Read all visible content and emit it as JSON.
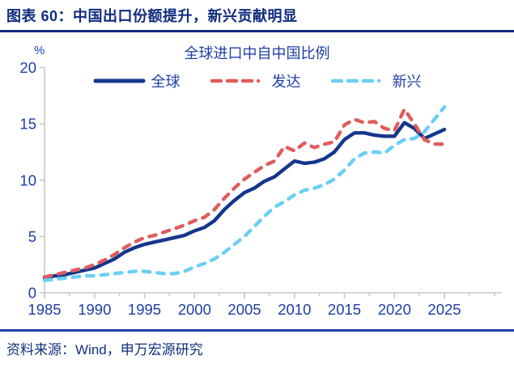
{
  "header": {
    "title": "图表 60：中国出口份额提升，新兴贡献明显"
  },
  "chart": {
    "title": "全球进口中自中国比例",
    "unit_label": "%",
    "legend": [
      {
        "id": "global",
        "label": "全球",
        "color": "#14368c",
        "dashed": false
      },
      {
        "id": "developed",
        "label": "发达",
        "color": "#e05c5c",
        "dashed": true
      },
      {
        "id": "emerging",
        "label": "新兴",
        "color": "#6bcef5",
        "dashed": true
      }
    ]
  },
  "chart_data": {
    "type": "line",
    "title": "全球进口中自中国比例",
    "xlabel": "",
    "ylabel": "%",
    "ylim": [
      0,
      20
    ],
    "yticks": [
      0,
      5,
      10,
      15,
      20
    ],
    "xticks": [
      1985,
      1990,
      1995,
      2000,
      2005,
      2010,
      2015,
      2020,
      2025
    ],
    "grid": false,
    "legend_position": "top",
    "x": [
      1985,
      1986,
      1987,
      1988,
      1989,
      1990,
      1991,
      1992,
      1993,
      1994,
      1995,
      1996,
      1997,
      1998,
      1999,
      2000,
      2001,
      2002,
      2003,
      2004,
      2005,
      2006,
      2007,
      2008,
      2009,
      2010,
      2011,
      2012,
      2013,
      2014,
      2015,
      2016,
      2017,
      2018,
      2019,
      2020,
      2021,
      2022,
      2023,
      2024,
      2025
    ],
    "series": [
      {
        "id": "global",
        "name": "全球",
        "color": "#14368c",
        "dashed": false,
        "values": [
          1.3,
          1.5,
          1.6,
          1.8,
          2.0,
          2.2,
          2.6,
          3.0,
          3.6,
          4.0,
          4.3,
          4.5,
          4.7,
          4.9,
          5.1,
          5.5,
          5.8,
          6.4,
          7.4,
          8.2,
          8.9,
          9.3,
          9.9,
          10.3,
          11.0,
          11.7,
          11.5,
          11.6,
          11.9,
          12.5,
          13.6,
          14.2,
          14.2,
          14.0,
          13.9,
          13.9,
          15.1,
          14.6,
          13.7,
          14.1,
          14.5
        ]
      },
      {
        "id": "developed",
        "name": "发达",
        "color": "#e05c5c",
        "dashed": true,
        "values": [
          1.4,
          1.6,
          1.8,
          2.0,
          2.2,
          2.5,
          2.9,
          3.4,
          4.0,
          4.5,
          4.9,
          5.1,
          5.4,
          5.7,
          6.0,
          6.4,
          6.7,
          7.4,
          8.4,
          9.3,
          10.1,
          10.7,
          11.3,
          11.7,
          13.0,
          12.6,
          13.3,
          12.9,
          13.2,
          13.4,
          14.9,
          15.4,
          15.1,
          15.2,
          14.6,
          14.4,
          16.3,
          15.0,
          13.6,
          13.2,
          13.2
        ]
      },
      {
        "id": "emerging",
        "name": "新兴",
        "color": "#6bcef5",
        "dashed": true,
        "values": [
          1.1,
          1.2,
          1.3,
          1.4,
          1.5,
          1.5,
          1.6,
          1.7,
          1.8,
          1.9,
          1.9,
          1.8,
          1.7,
          1.7,
          1.9,
          2.3,
          2.6,
          3.0,
          3.6,
          4.3,
          5.0,
          5.9,
          6.8,
          7.6,
          8.1,
          8.7,
          9.1,
          9.3,
          9.6,
          10.1,
          10.9,
          11.9,
          12.4,
          12.5,
          12.4,
          13.1,
          13.6,
          13.7,
          14.3,
          15.4,
          16.5
        ]
      }
    ]
  },
  "footer": {
    "source": "资料来源：Wind，申万宏源研究"
  },
  "colors": {
    "header_navy": "#0e2c7e",
    "chart_text_blue": "#1c3fa6",
    "axis_gray": "#c8c8c8",
    "footer_navy": "#12307f"
  }
}
